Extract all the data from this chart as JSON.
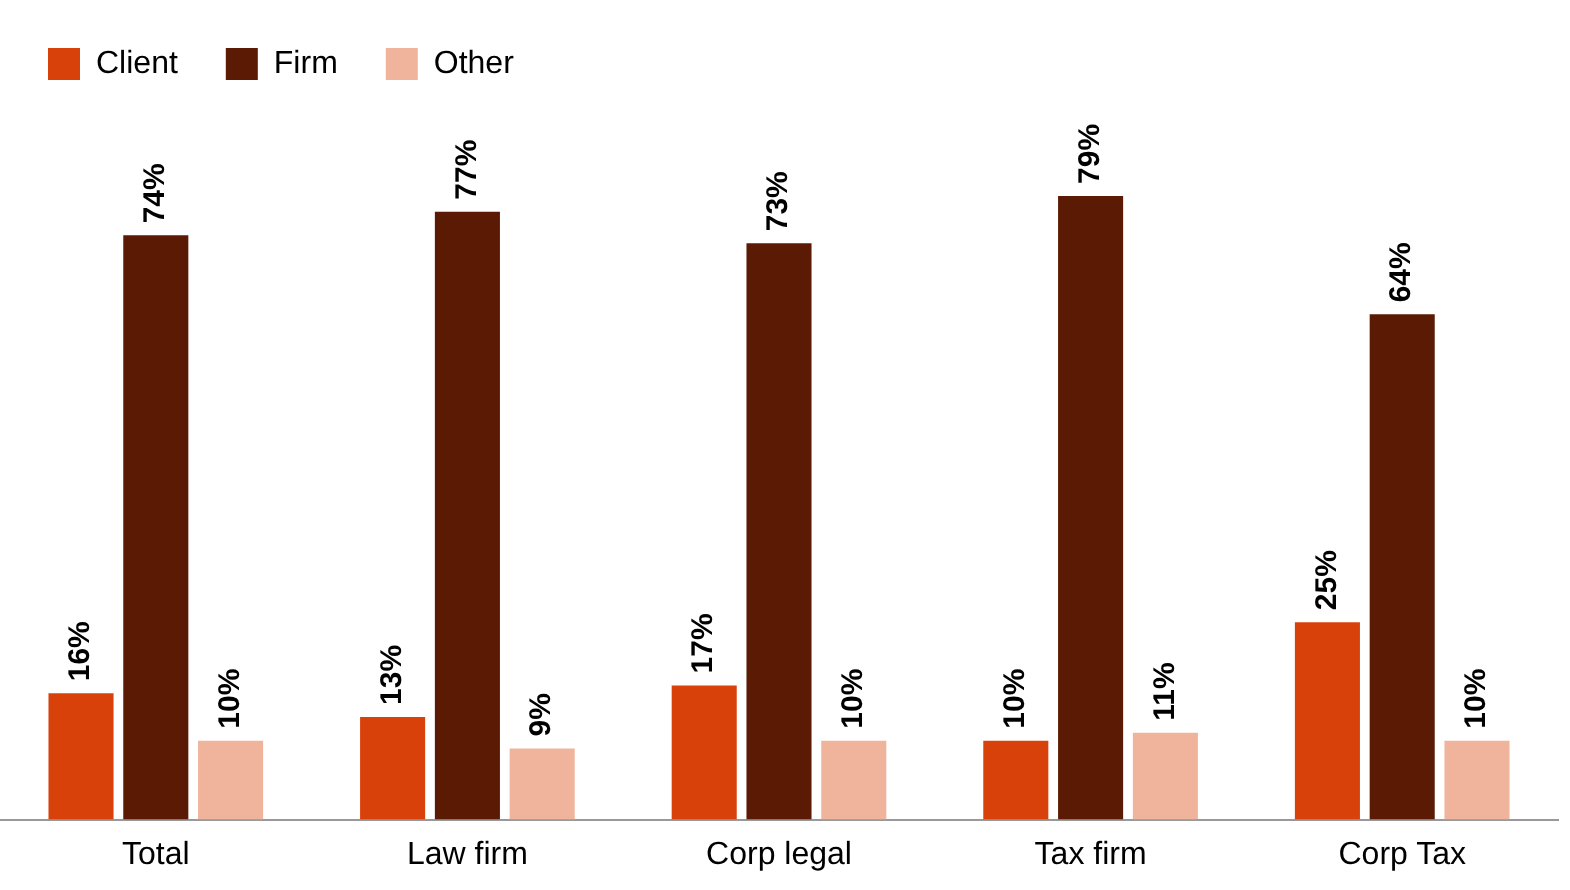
{
  "chart_data": {
    "type": "bar",
    "categories": [
      "Total",
      "Law firm",
      "Corp legal",
      "Tax firm",
      "Corp Tax"
    ],
    "series": [
      {
        "name": "Client",
        "color": "#d9410b",
        "values": [
          16,
          13,
          17,
          10,
          25
        ],
        "value_labels": [
          "16%",
          "13%",
          "17%",
          "10%",
          "25%"
        ]
      },
      {
        "name": "Firm",
        "color": "#5a1a04",
        "values": [
          74,
          77,
          73,
          79,
          64
        ],
        "value_labels": [
          "74%",
          "77%",
          "73%",
          "79%",
          "64%"
        ]
      },
      {
        "name": "Other",
        "color": "#f0b49c",
        "values": [
          10,
          9,
          10,
          11,
          10
        ],
        "value_labels": [
          "10%",
          "9%",
          "10%",
          "11%",
          "10%"
        ]
      }
    ],
    "legend": "top left",
    "grid": false
  }
}
